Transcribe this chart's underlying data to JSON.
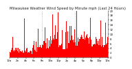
{
  "title": "Milwaukee Weather Wind Speed by Minute mph (Last 24 Hours)",
  "bar_color": "#ff0000",
  "background_color": "#ffffff",
  "plot_bg_color": "#ffffff",
  "grid_color": "#888888",
  "ylim": [
    0,
    20
  ],
  "yticks": [
    0,
    2,
    4,
    6,
    8,
    10,
    12,
    14,
    16,
    18,
    20
  ],
  "n_bars": 1440,
  "title_fontsize": 3.8,
  "tick_fontsize": 2.8,
  "num_grid_lines": 2
}
